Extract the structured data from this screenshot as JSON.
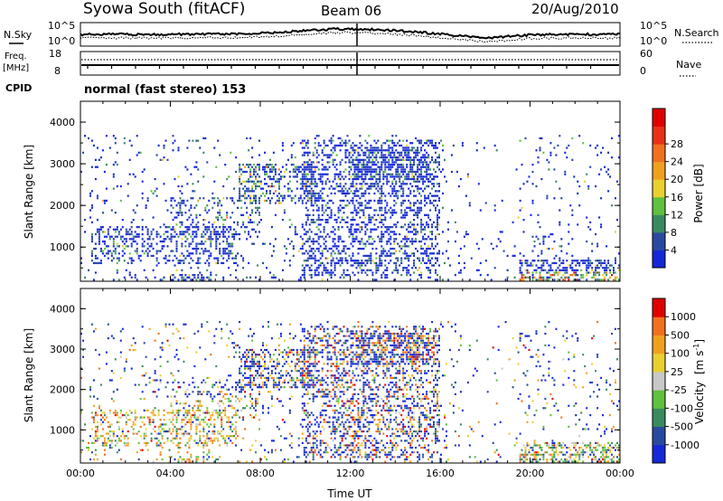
{
  "header": {
    "station": "Syowa South (fitACF)",
    "beam": "Beam 06",
    "date": "20/Aug/2010"
  },
  "noise_panel": {
    "left_label": "N.Sky",
    "right_label": "N.Search",
    "left_ticks": [
      "10^5",
      "10^0"
    ],
    "right_ticks": [
      "10^5",
      "10^0"
    ]
  },
  "freq_panel": {
    "left_label_line1": "Freq.",
    "left_label_line2": "[MHz]",
    "left_ticks": [
      "18",
      "8"
    ],
    "right_label": "Nave",
    "right_ticks": [
      "60",
      "0"
    ],
    "cpid_label": "CPID",
    "cpid_value": "normal (fast stereo) 153"
  },
  "chart_data": [
    {
      "type": "heatmap",
      "name": "power",
      "ylabel": "Slant Range [km]",
      "ylim": [
        180,
        4500
      ],
      "yticks": [
        "1000",
        "2000",
        "3000",
        "4000"
      ],
      "xlim_hours": [
        0,
        24
      ],
      "xticks": [
        "00:00",
        "04:00",
        "08:00",
        "12:00",
        "16:00",
        "20:00",
        "00:00"
      ],
      "colorbar": {
        "label": "Power [dB]",
        "ticks": [
          "4",
          "8",
          "12",
          "16",
          "20",
          "24",
          "28"
        ],
        "colors": [
          "#1428d8",
          "#2a4aa0",
          "#3a8a60",
          "#60c040",
          "#e8d030",
          "#f0a020",
          "#f07020",
          "#e83018",
          "#e00000"
        ]
      }
    },
    {
      "type": "heatmap",
      "name": "velocity",
      "ylabel": "Slant Range [km]",
      "ylim": [
        180,
        4500
      ],
      "yticks": [
        "1000",
        "2000",
        "3000",
        "4000"
      ],
      "xlim_hours": [
        0,
        24
      ],
      "xticks": [
        "00:00",
        "04:00",
        "08:00",
        "12:00",
        "16:00",
        "20:00",
        "00:00"
      ],
      "xlabel": "Time UT",
      "colorbar": {
        "label": "Velocity",
        "label_unit": "[m s",
        "label_exp": "-1",
        "label_close": "]",
        "ticks": [
          "1000",
          "500",
          "100",
          "25",
          "-25",
          "-100",
          "-500",
          "-1000"
        ],
        "colors": [
          "#1428d8",
          "#2a4aa0",
          "#3a8a60",
          "#60c040",
          "#c8c8c8",
          "#e8d030",
          "#f0a020",
          "#f07020",
          "#e00000"
        ]
      }
    }
  ]
}
